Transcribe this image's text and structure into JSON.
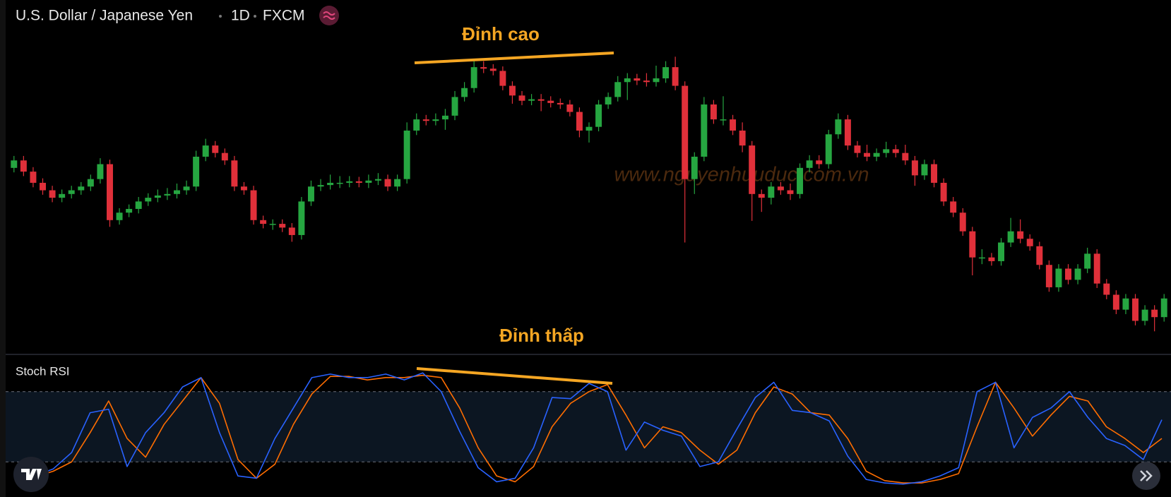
{
  "chart_data": [
    {
      "type": "candlestick",
      "title": "U.S. Dollar / Japanese Yen",
      "interval": "1D",
      "source": "FXCM",
      "annotation": "Đỉnh cao",
      "watermark": "www.nguyenhuuduc.com.vn",
      "up_color": "#26a641",
      "down_color": "#e0303a",
      "ylim": [
        0,
        474
      ],
      "open": [
        249,
        259,
        244,
        229,
        219,
        209,
        214,
        219,
        224,
        234,
        254,
        179,
        189,
        194,
        204,
        209,
        212,
        214,
        219,
        224,
        264,
        279,
        269,
        259,
        224,
        219,
        179,
        174,
        174,
        169,
        159,
        204,
        224,
        226,
        229,
        229,
        231,
        229,
        232,
        234,
        224,
        234,
        299,
        314,
        312,
        314,
        319,
        344,
        356,
        384,
        382,
        379,
        359,
        346,
        339,
        341,
        339,
        336,
        334,
        324,
        299,
        304,
        334,
        344,
        364,
        369,
        366,
        364,
        369,
        384,
        359,
        234,
        264,
        334,
        314,
        314,
        299,
        279,
        214,
        209,
        224,
        219,
        214,
        249,
        259,
        254,
        294,
        314,
        279,
        269,
        264,
        269,
        274,
        269,
        259,
        239,
        254,
        229,
        204,
        189,
        164,
        129,
        129,
        124,
        149,
        164,
        154,
        144,
        119,
        89,
        114,
        99,
        114,
        134,
        94,
        79,
        59,
        74,
        44,
        59,
        49
      ],
      "high": [
        265,
        265,
        250,
        235,
        225,
        220,
        225,
        230,
        240,
        262,
        260,
        195,
        200,
        210,
        215,
        220,
        222,
        228,
        232,
        272,
        288,
        285,
        275,
        265,
        230,
        225,
        185,
        180,
        180,
        175,
        210,
        232,
        234,
        240,
        238,
        238,
        237,
        240,
        242,
        240,
        240,
        310,
        322,
        320,
        322,
        328,
        352,
        364,
        392,
        392,
        388,
        385,
        365,
        352,
        348,
        348,
        345,
        342,
        340,
        330,
        310,
        340,
        350,
        372,
        376,
        375,
        376,
        386,
        392,
        398,
        365,
        270,
        344,
        340,
        345,
        320,
        310,
        285,
        220,
        230,
        230,
        228,
        255,
        266,
        266,
        300,
        322,
        320,
        285,
        280,
        275,
        284,
        280,
        280,
        265,
        260,
        260,
        235,
        210,
        195,
        170,
        140,
        135,
        155,
        182,
        180,
        160,
        150,
        125,
        120,
        120,
        120,
        142,
        140,
        100,
        85,
        80,
        80,
        65,
        65,
        80
      ],
      "low": [
        243,
        238,
        223,
        213,
        203,
        203,
        208,
        213,
        218,
        228,
        170,
        173,
        183,
        188,
        198,
        203,
        206,
        208,
        213,
        218,
        258,
        263,
        253,
        218,
        213,
        173,
        168,
        166,
        163,
        150,
        153,
        198,
        218,
        220,
        222,
        223,
        223,
        222,
        226,
        218,
        218,
        228,
        293,
        306,
        306,
        300,
        313,
        338,
        350,
        376,
        373,
        353,
        335,
        333,
        333,
        325,
        330,
        328,
        318,
        290,
        283,
        298,
        328,
        338,
        340,
        360,
        358,
        358,
        363,
        353,
        149,
        214,
        258,
        308,
        306,
        293,
        270,
        178,
        190,
        200,
        213,
        206,
        208,
        243,
        248,
        248,
        288,
        273,
        263,
        258,
        258,
        263,
        263,
        253,
        225,
        233,
        223,
        198,
        183,
        158,
        105,
        120,
        118,
        118,
        143,
        148,
        138,
        113,
        83,
        83,
        93,
        93,
        108,
        88,
        73,
        53,
        53,
        38,
        38,
        30,
        43
      ],
      "close": [
        259,
        244,
        229,
        219,
        209,
        214,
        219,
        224,
        234,
        254,
        179,
        189,
        194,
        204,
        209,
        212,
        214,
        219,
        224,
        264,
        279,
        269,
        259,
        224,
        219,
        179,
        174,
        174,
        169,
        159,
        204,
        224,
        226,
        229,
        229,
        231,
        229,
        232,
        234,
        224,
        234,
        299,
        314,
        312,
        314,
        319,
        344,
        356,
        384,
        382,
        379,
        359,
        346,
        339,
        341,
        339,
        336,
        334,
        324,
        299,
        304,
        334,
        344,
        364,
        369,
        366,
        364,
        369,
        384,
        359,
        234,
        264,
        334,
        314,
        314,
        299,
        279,
        214,
        209,
        224,
        219,
        214,
        249,
        259,
        254,
        294,
        314,
        279,
        269,
        264,
        269,
        274,
        269,
        259,
        239,
        254,
        229,
        204,
        189,
        164,
        129,
        129,
        124,
        149,
        164,
        154,
        144,
        119,
        89,
        114,
        99,
        114,
        134,
        94,
        79,
        59,
        74,
        44,
        59,
        49,
        74
      ]
    },
    {
      "type": "line",
      "title": "Stoch RSI",
      "annotation": "Đỉnh thấp",
      "ylim": [
        -10,
        110
      ],
      "hlines": [
        20,
        80
      ],
      "series": [
        {
          "color": "#2962ff",
          "values": [
            6,
            8,
            14,
            28,
            62,
            65,
            16,
            45,
            62,
            84,
            92,
            45,
            8,
            6,
            40,
            66,
            92,
            95,
            92,
            92,
            95,
            90,
            96,
            80,
            46,
            15,
            3,
            6,
            32,
            75,
            74,
            87,
            80,
            30,
            54,
            47,
            42,
            16,
            20,
            48,
            75,
            88,
            64,
            62,
            55,
            25,
            5,
            2,
            1,
            3,
            8,
            15,
            80,
            88,
            32,
            58,
            66,
            80,
            58,
            40,
            34,
            22,
            56
          ]
        },
        {
          "color": "#ff6d00",
          "values": [
            4,
            7,
            12,
            20,
            45,
            72,
            40,
            24,
            52,
            72,
            92,
            70,
            22,
            6,
            18,
            52,
            78,
            93,
            93,
            90,
            92,
            92,
            94,
            92,
            66,
            32,
            8,
            3,
            16,
            50,
            70,
            80,
            86,
            60,
            32,
            50,
            45,
            30,
            18,
            30,
            62,
            84,
            78,
            62,
            60,
            40,
            12,
            4,
            2,
            2,
            5,
            10,
            50,
            88,
            66,
            42,
            60,
            76,
            72,
            50,
            40,
            28,
            40
          ]
        }
      ]
    }
  ]
}
